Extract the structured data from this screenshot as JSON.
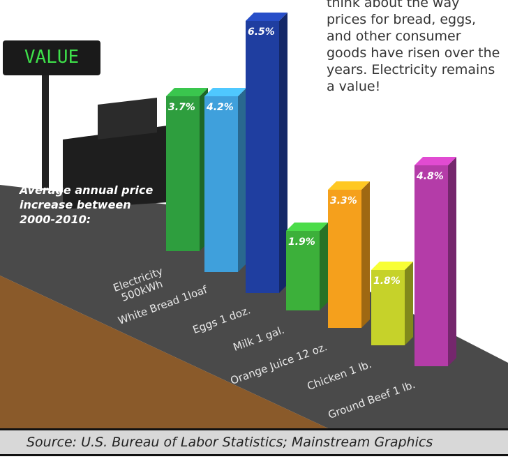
{
  "chart_data": {
    "type": "bar",
    "display_text": "VALUE",
    "intro_text": "think about the way prices for bread, eggs, and other consumer goods have risen over the years. Electricity remains a value!",
    "annotation": "Average annual price increase between 2000-2010:",
    "source": "Source:  U.S. Bureau of Labor Statistics; Mainstream Graphics",
    "categories": [
      "Electricity\n500kWh",
      "White Bread 1loaf",
      "Eggs 1 doz.",
      "Milk 1 gal.",
      "Orange Juice 12 oz.",
      "Chicken 1 lb.",
      "Ground Beef 1 lb."
    ],
    "values": [
      3.7,
      4.2,
      6.5,
      1.9,
      3.3,
      1.8,
      4.8
    ],
    "value_labels": [
      "3.7%",
      "4.2%",
      "6.5%",
      "1.9%",
      "3.3%",
      "1.8%",
      "4.8%"
    ],
    "colors": [
      "#2e9e3e",
      "#3fa0dc",
      "#1f3ea0",
      "#3cb03a",
      "#f5a01c",
      "#c6d22a",
      "#b43ca8"
    ]
  }
}
